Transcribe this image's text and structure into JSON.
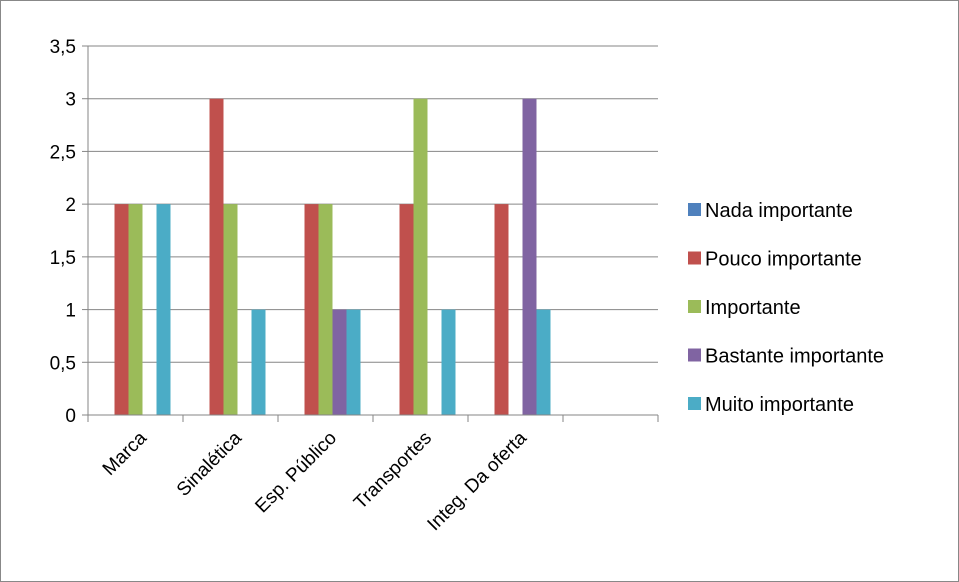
{
  "chart_data": {
    "type": "bar",
    "title": "",
    "xlabel": "",
    "ylabel": "",
    "categories": [
      "Marca",
      "Sinalética",
      "Esp. Público",
      "Transportes",
      "Integ. Da oferta"
    ],
    "series": [
      {
        "name": "Nada importante",
        "color": "#4F81BD",
        "values": [
          0,
          0,
          0,
          0,
          0
        ]
      },
      {
        "name": "Pouco importante",
        "color": "#C0504D",
        "values": [
          2,
          3,
          2,
          2,
          2
        ]
      },
      {
        "name": "Importante",
        "color": "#9BBB59",
        "values": [
          2,
          2,
          2,
          3,
          0
        ]
      },
      {
        "name": "Bastante importante",
        "color": "#8064A2",
        "values": [
          0,
          0,
          1,
          0,
          3
        ]
      },
      {
        "name": "Muito importante",
        "color": "#4BACC6",
        "values": [
          2,
          1,
          1,
          1,
          1
        ]
      }
    ],
    "ylim": [
      0,
      3.5
    ],
    "yticks": [
      "0",
      "0,5",
      "1",
      "1,5",
      "2",
      "2,5",
      "3",
      "3,5"
    ],
    "grid": true,
    "legend_position": "right"
  }
}
